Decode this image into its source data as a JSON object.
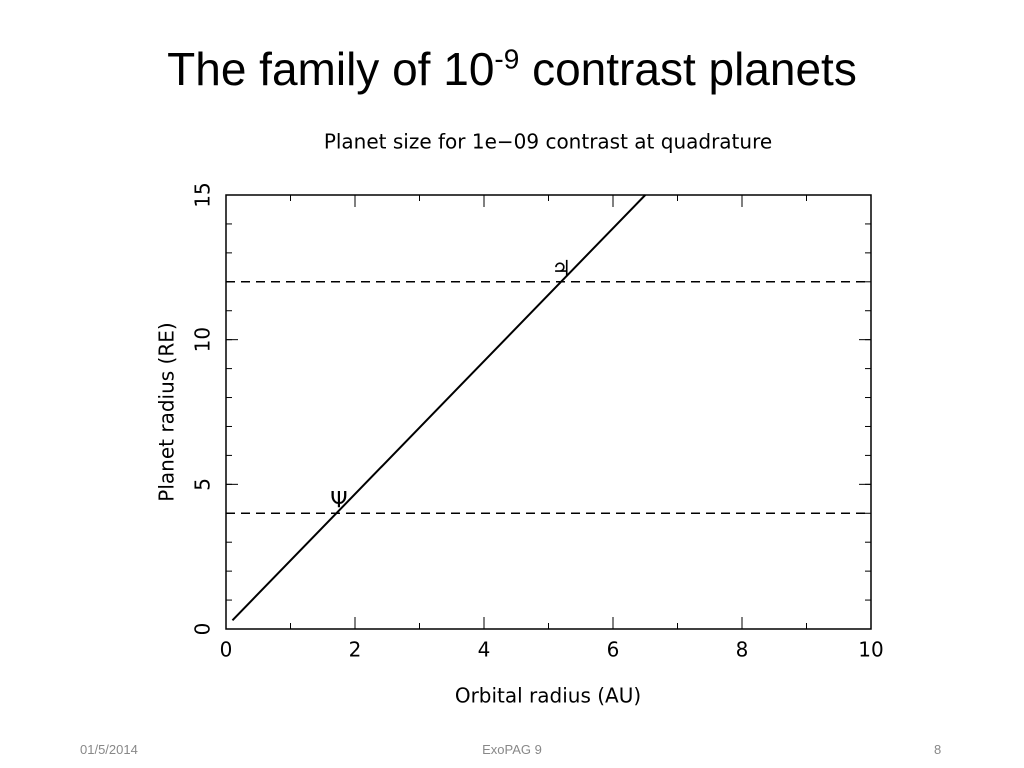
{
  "slide": {
    "title_parts": [
      "The family of 10",
      "-9",
      "contrast planets"
    ],
    "footer": {
      "date": "01/5/2014",
      "event": "ExoPAG 9",
      "page": "8"
    }
  },
  "chart_data": {
    "type": "line",
    "title": "Planet size for 1e−09 contrast at quadrature",
    "x_label": "Orbital radius (AU)",
    "y_label": "Planet radius (RE)",
    "xlim": [
      0,
      10
    ],
    "ylim": [
      0,
      15
    ],
    "xticks": [
      0,
      2,
      4,
      6,
      8,
      10
    ],
    "yticks": [
      0,
      5,
      10,
      15
    ],
    "xminor_step": 1,
    "yminor_step": 1,
    "series": [
      {
        "x": [
          0.1,
          6.5
        ],
        "values": [
          0.3,
          15
        ],
        "color": "#000000"
      }
    ],
    "hlines": [
      12,
      4
    ],
    "annotations": [
      {
        "text": "♃",
        "x": 5.2,
        "y": 12.4
      },
      {
        "text": "Ψ",
        "x": 1.75,
        "y": 4.4
      }
    ]
  }
}
